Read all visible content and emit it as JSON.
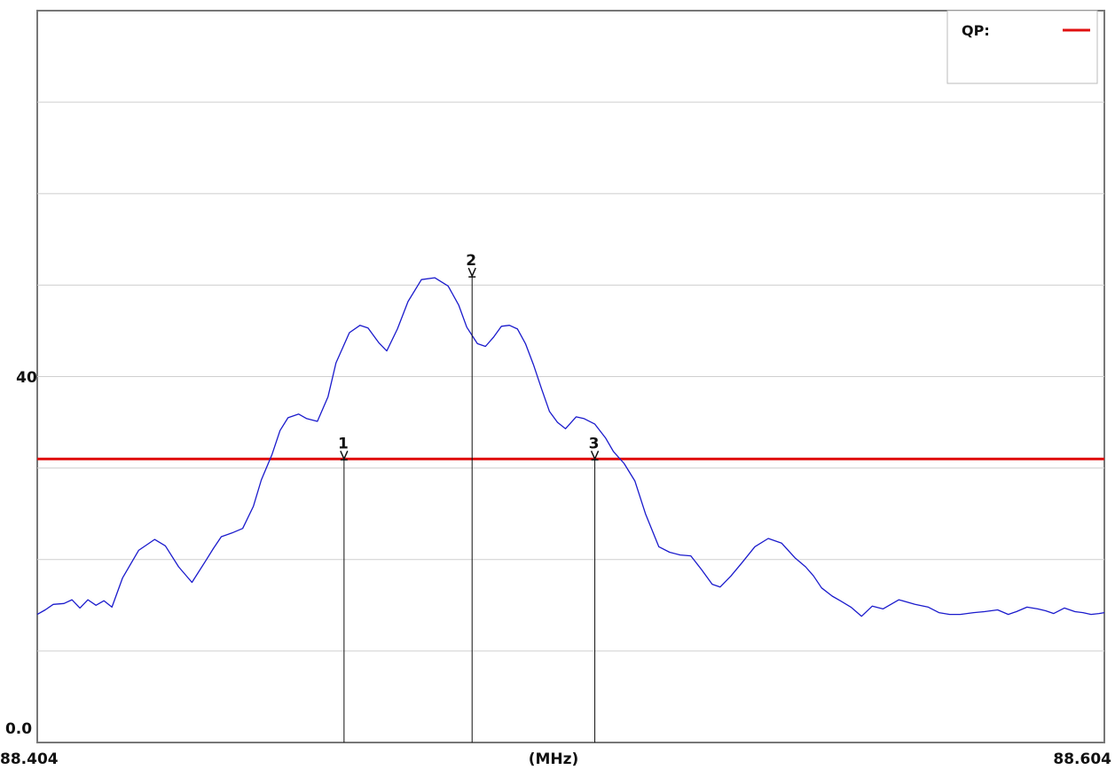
{
  "chart_data": {
    "type": "line",
    "title": "",
    "xlabel": "(MHz)",
    "ylabel": "",
    "xlim": [
      88.404,
      88.604
    ],
    "ylim": [
      0.0,
      80
    ],
    "x_tick_labels": [
      "88.404",
      "(MHz)",
      "88.604"
    ],
    "y_tick_labels": [
      "40",
      "0.0"
    ],
    "y_gridlines": [
      10,
      20,
      30,
      40,
      50,
      60,
      70
    ],
    "grid": true,
    "legend": {
      "position": "top-right",
      "entries": [
        {
          "label": "QP:",
          "color": "#e01010"
        }
      ]
    },
    "limit_line": {
      "name": "QP",
      "value": 31,
      "color": "#e01010"
    },
    "series": [
      {
        "color": "#1a1acc",
        "x": [
          88.404,
          88.4055,
          88.407,
          88.409,
          88.4105,
          88.412,
          88.4135,
          88.415,
          88.4165,
          88.418,
          88.42,
          88.423,
          88.426,
          88.428,
          88.4305,
          88.433,
          88.4355,
          88.437,
          88.4385,
          88.4405,
          88.4425,
          88.4445,
          88.446,
          88.448,
          88.4495,
          88.451,
          88.453,
          88.4545,
          88.4565,
          88.4585,
          88.46,
          88.4625,
          88.4645,
          88.466,
          88.468,
          88.4695,
          88.4715,
          88.4735,
          88.476,
          88.4785,
          88.481,
          88.483,
          88.4845,
          88.4865,
          88.488,
          88.4895,
          88.491,
          88.4925,
          88.494,
          88.4955,
          88.497,
          88.4985,
          88.5,
          88.5015,
          88.503,
          88.505,
          88.5065,
          88.5085,
          88.5105,
          88.512,
          88.514,
          88.516,
          88.518,
          88.5205,
          88.5225,
          88.5245,
          88.5265,
          88.5285,
          88.5305,
          88.532,
          88.534,
          88.536,
          88.5385,
          88.541,
          88.5435,
          88.546,
          88.548,
          88.5495,
          88.551,
          88.553,
          88.5545,
          88.5565,
          88.5585,
          88.5605,
          88.5625,
          88.5655,
          88.5685,
          88.571,
          88.573,
          88.575,
          88.577,
          88.5795,
          88.5815,
          88.584,
          88.586,
          88.5875,
          88.5895,
          88.5915,
          88.593,
          88.5945,
          88.5965,
          88.5985,
          88.6,
          88.6015,
          88.603,
          88.604
        ],
        "y": [
          14,
          14.5,
          15.1,
          15.2,
          15.6,
          14.7,
          15.6,
          15.0,
          15.5,
          14.8,
          18.0,
          21.0,
          22.2,
          21.5,
          19.2,
          17.5,
          19.8,
          21.2,
          22.5,
          22.9,
          23.4,
          25.8,
          28.7,
          31.5,
          34.1,
          35.5,
          35.9,
          35.4,
          35.1,
          37.8,
          41.5,
          44.8,
          45.6,
          45.3,
          43.7,
          42.8,
          45.2,
          48.2,
          50.6,
          50.8,
          49.9,
          47.8,
          45.4,
          43.6,
          43.3,
          44.3,
          45.5,
          45.6,
          45.2,
          43.6,
          41.3,
          38.7,
          36.2,
          35.0,
          34.3,
          35.6,
          35.4,
          34.8,
          33.3,
          31.8,
          30.5,
          28.6,
          25.0,
          21.4,
          20.8,
          20.5,
          20.4,
          18.9,
          17.3,
          17.0,
          18.2,
          19.6,
          21.4,
          22.3,
          21.8,
          20.2,
          19.2,
          18.2,
          16.9,
          16.0,
          15.5,
          14.8,
          13.8,
          14.9,
          14.6,
          15.6,
          15.1,
          14.8,
          14.2,
          14.0,
          14.0,
          14.2,
          14.3,
          14.5,
          14.0,
          14.3,
          14.8,
          14.6,
          14.4,
          14.1,
          14.7,
          14.3,
          14.2,
          14.0,
          14.1,
          14.2
        ]
      }
    ],
    "markers": [
      {
        "label": "1",
        "x": 88.4615,
        "y": 31
      },
      {
        "label": "2",
        "x": 88.4855,
        "y": 51
      },
      {
        "label": "3",
        "x": 88.5085,
        "y": 31
      }
    ]
  }
}
